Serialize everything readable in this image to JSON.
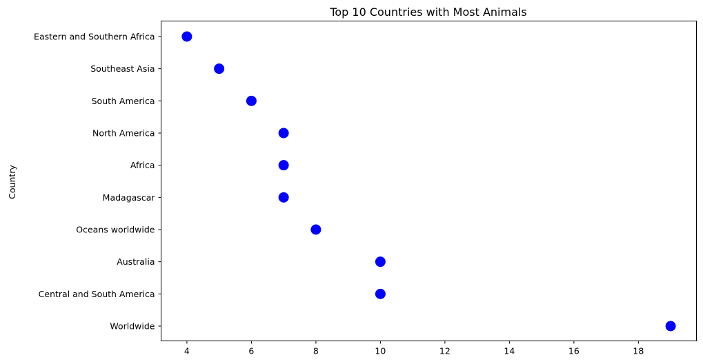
{
  "chart_data": {
    "type": "scatter",
    "title": "Top 10 Countries with Most Animals",
    "xlabel": "",
    "ylabel": "Country",
    "categories": [
      "Eastern and Southern Africa",
      "Southeast Asia",
      "South America",
      "North America",
      "Africa",
      "Madagascar",
      "Oceans worldwide",
      "Australia",
      "Central and South America",
      "Worldwide"
    ],
    "values": [
      4,
      5,
      6,
      7,
      7,
      7,
      8,
      10,
      10,
      19
    ],
    "xlim": [
      3.2,
      19.8
    ],
    "xticks": [
      4,
      6,
      8,
      10,
      12,
      14,
      16,
      18
    ],
    "grid": false,
    "marker_color": "#0000ff"
  }
}
